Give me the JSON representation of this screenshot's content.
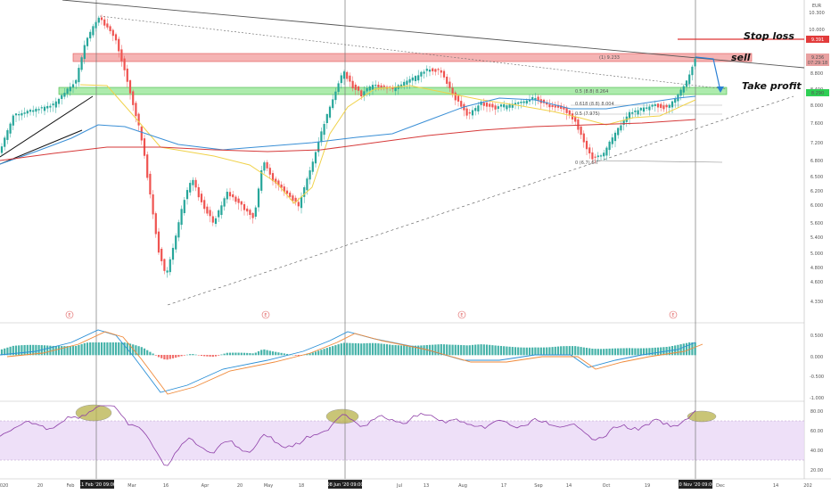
{
  "chart_data": [
    {
      "type": "candlestick",
      "currency": "EUR",
      "y_ticks": [
        "10.300",
        "10.000",
        "9.200",
        "8.800",
        "8.400",
        "8.000",
        "7.600",
        "7.200",
        "6.800",
        "6.500",
        "6.200",
        "6.000",
        "5.600",
        "5.400",
        "5.000",
        "4.800",
        "4.600",
        "4.330"
      ],
      "x_ticks": [
        "2020",
        "20",
        "Feb",
        "Mar",
        "16",
        "Apr",
        "20",
        "May",
        "18",
        "Jul",
        "13",
        "Aug",
        "17",
        "Sep",
        "14",
        "Oct",
        "19",
        "Dec",
        "14",
        "202"
      ],
      "highlighted_dates": [
        "11 Feb '20   09:00",
        "08 Jun '20   09:00",
        "10 Nov '20   09:00"
      ],
      "price_labels": {
        "current": "9.236",
        "countdown": "07:29:18",
        "stop": "9.391",
        "take_profit": "8.290"
      },
      "fib_levels": [
        "(1) 9.233",
        "0.5 (8.8) 8.264",
        "0.618 (8.8) 8.004",
        "0.5 (7.975)",
        "0 (6.7) 6.7"
      ],
      "moving_averages": [
        {
          "color": "#f0d24a",
          "label": "short MA"
        },
        {
          "color": "#3a8fd6",
          "label": "mid MA"
        },
        {
          "color": "#d63a3a",
          "label": "long MA"
        }
      ],
      "events_marker": "E",
      "annotations": {
        "stop_loss": "Stop loss",
        "sell": "sell",
        "take_profit": "Take profit"
      }
    },
    {
      "type": "macd",
      "y_ticks": [
        "0.500",
        "0.000",
        "-0.500",
        "-1.000"
      ]
    },
    {
      "type": "rsi",
      "y_ticks": [
        "80.00",
        "60.00",
        "40.00",
        "20.00"
      ]
    }
  ]
}
